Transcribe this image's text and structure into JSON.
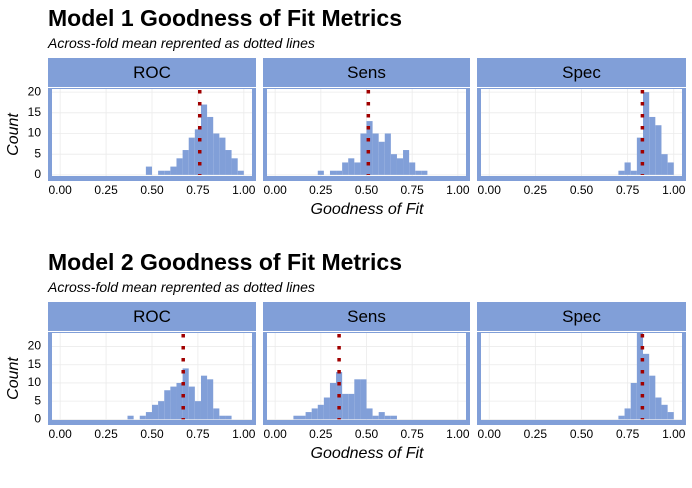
{
  "chart_data": [
    {
      "type": "histogram",
      "title": "Model 1 Goodness of Fit Metrics",
      "subtitle": "Across-fold mean reprented as dotted lines",
      "xlabel": "Goodness of Fit",
      "ylabel": "Count",
      "xlim": [
        -0.05,
        1.05
      ],
      "xticks": [
        {
          "value": 0,
          "label": "0.00"
        },
        {
          "value": 0.25,
          "label": "0.25"
        },
        {
          "value": 0.5,
          "label": "0.50"
        },
        {
          "value": 0.75,
          "label": "0.75"
        },
        {
          "value": 1,
          "label": "1.00"
        }
      ],
      "ylim": [
        -1,
        21
      ],
      "yticks": [
        0,
        5,
        10,
        15,
        20
      ],
      "grid": true,
      "color": "#819fd8",
      "mean_color": "#a00000",
      "bins": [
        0,
        0.0333,
        0.0667,
        0.1,
        0.1333,
        0.1667,
        0.2,
        0.2333,
        0.2667,
        0.3,
        0.3333,
        0.3667,
        0.4,
        0.4333,
        0.4667,
        0.5,
        0.5333,
        0.5667,
        0.6,
        0.6333,
        0.6667,
        0.7,
        0.7333,
        0.7667,
        0.8,
        0.8333,
        0.8667,
        0.9,
        0.9333,
        0.9667,
        1
      ],
      "facets": [
        {
          "title": "ROC",
          "mean": 0.76,
          "values": [
            0,
            0,
            0,
            0,
            0,
            0,
            0,
            0,
            0,
            0,
            0,
            0,
            0,
            0,
            2,
            0,
            1,
            1,
            2,
            4,
            6,
            9,
            11,
            17,
            14,
            10,
            9,
            6,
            4,
            1
          ]
        },
        {
          "title": "Sens",
          "mean": 0.51,
          "values": [
            0,
            0,
            0,
            0,
            0,
            0,
            0,
            1,
            0,
            1,
            1,
            3,
            4,
            3,
            10,
            13,
            10,
            8,
            10,
            5,
            4,
            6,
            3,
            1,
            1,
            0,
            0,
            0,
            0,
            0
          ]
        },
        {
          "title": "Spec",
          "mean": 0.83,
          "values": [
            0,
            0,
            0,
            0,
            0,
            0,
            0,
            0,
            0,
            0,
            0,
            0,
            0,
            0,
            0,
            0,
            0,
            0,
            0,
            0,
            0,
            1,
            3,
            1,
            9,
            20,
            14,
            12,
            5,
            3
          ]
        }
      ]
    },
    {
      "type": "histogram",
      "title": "Model 2 Goodness of Fit Metrics",
      "subtitle": "Across-fold mean reprented as dotted lines",
      "xlabel": "Goodness of Fit",
      "ylabel": "Count",
      "xlim": [
        -0.05,
        1.05
      ],
      "xticks": [
        {
          "value": 0,
          "label": "0.00"
        },
        {
          "value": 0.25,
          "label": "0.25"
        },
        {
          "value": 0.5,
          "label": "0.50"
        },
        {
          "value": 0.75,
          "label": "0.75"
        },
        {
          "value": 1,
          "label": "1.00"
        }
      ],
      "ylim": [
        -1,
        24
      ],
      "yticks": [
        0,
        5,
        10,
        15,
        20
      ],
      "grid": true,
      "color": "#819fd8",
      "mean_color": "#a00000",
      "bins": [
        0,
        0.0333,
        0.0667,
        0.1,
        0.1333,
        0.1667,
        0.2,
        0.2333,
        0.2667,
        0.3,
        0.3333,
        0.3667,
        0.4,
        0.4333,
        0.4667,
        0.5,
        0.5333,
        0.5667,
        0.6,
        0.6333,
        0.6667,
        0.7,
        0.7333,
        0.7667,
        0.8,
        0.8333,
        0.8667,
        0.9,
        0.9333,
        0.9667,
        1
      ],
      "facets": [
        {
          "title": "ROC",
          "mean": 0.67,
          "values": [
            0,
            0,
            0,
            0,
            0,
            0,
            0,
            0,
            0,
            0,
            0,
            1,
            0,
            1,
            2,
            4,
            5,
            8,
            9,
            10,
            14,
            9,
            5,
            12,
            11,
            3,
            1,
            1,
            0,
            0
          ]
        },
        {
          "title": "Sens",
          "mean": 0.35,
          "values": [
            0,
            0,
            0,
            1,
            1,
            2,
            3,
            4,
            6,
            10,
            13,
            7,
            7,
            11,
            11,
            3,
            1,
            2,
            1,
            1,
            0,
            0,
            0,
            0,
            0,
            0,
            0,
            0,
            0,
            0
          ]
        },
        {
          "title": "Spec",
          "mean": 0.83,
          "values": [
            0,
            0,
            0,
            0,
            0,
            0,
            0,
            0,
            0,
            0,
            0,
            0,
            0,
            0,
            0,
            0,
            0,
            0,
            0,
            0,
            0,
            1,
            3,
            10,
            24,
            18,
            12,
            6,
            4,
            2
          ]
        }
      ]
    }
  ]
}
